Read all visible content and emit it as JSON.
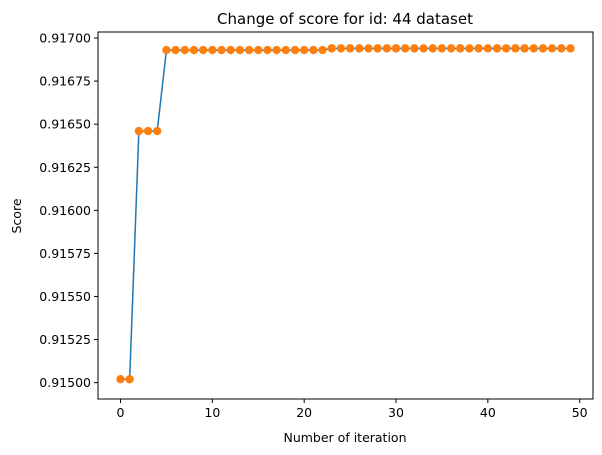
{
  "chart_data": {
    "type": "line",
    "title": "Change of score for id: 44 dataset",
    "xlabel": "Number of iteration",
    "ylabel": "Score",
    "xlim": [
      -2.45,
      51.45
    ],
    "ylim": [
      0.914905,
      0.917035
    ],
    "xticks": [
      0,
      10,
      20,
      30,
      40,
      50
    ],
    "yticks": [
      0.915,
      0.91525,
      0.9155,
      0.91575,
      0.916,
      0.91625,
      0.9165,
      0.91675,
      0.917
    ],
    "ytick_labels": [
      "0.91500",
      "0.91525",
      "0.91550",
      "0.91575",
      "0.91600",
      "0.91625",
      "0.91650",
      "0.91675",
      "0.91700"
    ],
    "grid": false,
    "line_color": "#1f77b4",
    "marker_color": "#ff7f0e",
    "x": [
      0,
      1,
      2,
      3,
      4,
      5,
      6,
      7,
      8,
      9,
      10,
      11,
      12,
      13,
      14,
      15,
      16,
      17,
      18,
      19,
      20,
      21,
      22,
      23,
      24,
      25,
      26,
      27,
      28,
      29,
      30,
      31,
      32,
      33,
      34,
      35,
      36,
      37,
      38,
      39,
      40,
      41,
      42,
      43,
      44,
      45,
      46,
      47,
      48,
      49
    ],
    "y": [
      0.91502,
      0.91502,
      0.91646,
      0.91646,
      0.91646,
      0.91693,
      0.91693,
      0.91693,
      0.91693,
      0.91693,
      0.91693,
      0.91693,
      0.91693,
      0.91693,
      0.91693,
      0.91693,
      0.91693,
      0.91693,
      0.91693,
      0.91693,
      0.91693,
      0.91693,
      0.91693,
      0.91694,
      0.91694,
      0.91694,
      0.91694,
      0.91694,
      0.91694,
      0.91694,
      0.91694,
      0.91694,
      0.91694,
      0.91694,
      0.91694,
      0.91694,
      0.91694,
      0.91694,
      0.91694,
      0.91694,
      0.91694,
      0.91694,
      0.91694,
      0.91694,
      0.91694,
      0.91694,
      0.91694,
      0.91694,
      0.91694,
      0.91694
    ]
  }
}
